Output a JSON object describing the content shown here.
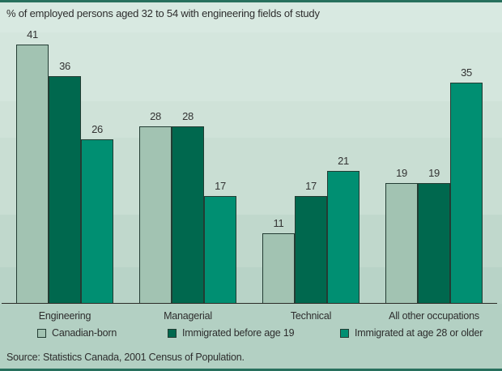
{
  "page": {
    "title": "% of employed persons aged 32 to 54 with engineering fields of study",
    "source": "Source: Statistics Canada, 2001 Census of Population."
  },
  "colors": {
    "series": [
      "#a2c3b2",
      "#00684e",
      "#008f72"
    ],
    "bar_outline": "#233c33",
    "accent_rule": "#27705d",
    "axis_line": "#2b2b26",
    "text": "#2d2d2d",
    "background_top": "#d8e9e1",
    "background_bottom": "#b3d0c3"
  },
  "chart_data": {
    "type": "bar",
    "title": "% of employed persons aged 32 to 54 with engineering fields of study",
    "categories": [
      "Engineering",
      "Managerial",
      "Technical",
      "All other occupations"
    ],
    "series": [
      {
        "name": "Canadian-born",
        "values": [
          41,
          28,
          11,
          19
        ]
      },
      {
        "name": "Immigrated before age 19",
        "values": [
          36,
          28,
          17,
          19
        ]
      },
      {
        "name": "Immigrated at age 28 or older",
        "values": [
          26,
          17,
          21,
          35
        ]
      }
    ],
    "ylim": [
      0,
      44
    ],
    "grid": false,
    "legend_position": "bottom",
    "value_labels": true,
    "source": "Source: Statistics Canada, 2001 Census of Population."
  }
}
